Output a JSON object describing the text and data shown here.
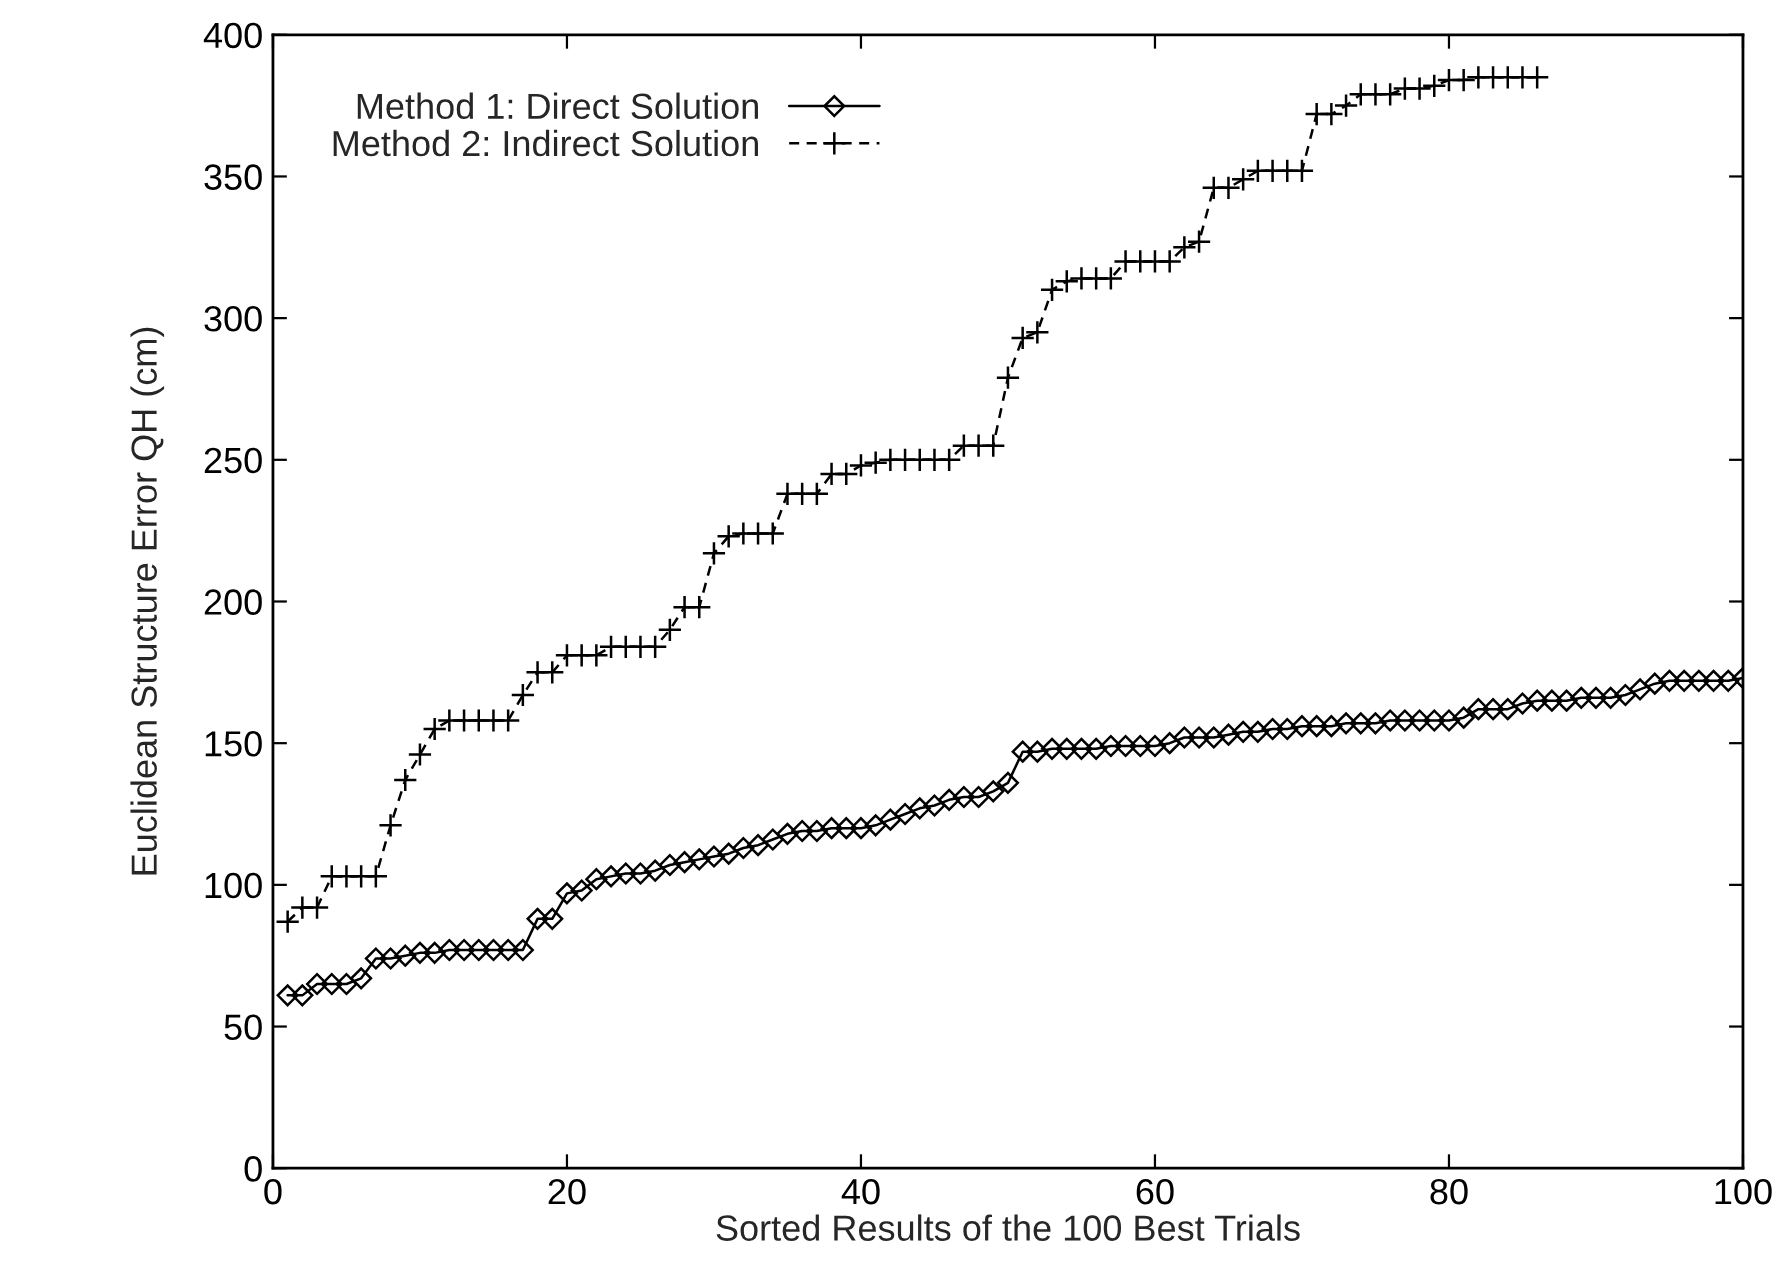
{
  "chart_data": {
    "type": "line",
    "xlabel": "Sorted Results of the 100 Best Trials",
    "ylabel": "Euclidean Structure Error QH (cm)",
    "xlim": [
      0,
      100
    ],
    "ylim": [
      0,
      400
    ],
    "xticks": [
      0,
      20,
      40,
      60,
      80,
      100
    ],
    "yticks": [
      0,
      50,
      100,
      150,
      200,
      250,
      300,
      350,
      400
    ],
    "grid": false,
    "legend": "top left",
    "series": [
      {
        "name": "Method 1: Direct Solution",
        "color": "#000000",
        "marker": "diamond",
        "line_style": "solid",
        "x": [
          1,
          2,
          3,
          4,
          5,
          6,
          7,
          8,
          9,
          10,
          11,
          12,
          13,
          14,
          15,
          16,
          17,
          18,
          19,
          20,
          21,
          22,
          23,
          24,
          25,
          26,
          27,
          28,
          29,
          30,
          31,
          32,
          33,
          34,
          35,
          36,
          37,
          38,
          39,
          40,
          41,
          42,
          43,
          44,
          45,
          46,
          47,
          48,
          49,
          50,
          51,
          52,
          53,
          54,
          55,
          56,
          57,
          58,
          59,
          60,
          61,
          62,
          63,
          64,
          65,
          66,
          67,
          68,
          69,
          70,
          71,
          72,
          73,
          74,
          75,
          76,
          77,
          78,
          79,
          80,
          81,
          82,
          83,
          84,
          85,
          86,
          87,
          88,
          89,
          90,
          91,
          92,
          93,
          94,
          95,
          96,
          97,
          98,
          99,
          100
        ],
        "values": [
          61,
          61,
          65,
          65,
          65,
          67,
          74,
          74,
          75,
          76,
          76,
          77,
          77,
          77,
          77,
          77,
          77,
          88,
          88,
          97,
          98,
          102,
          103,
          104,
          104,
          105,
          107,
          108,
          109,
          110,
          111,
          113,
          114,
          116,
          118,
          119,
          119,
          120,
          120,
          120,
          121,
          123,
          125,
          127,
          128,
          130,
          131,
          131,
          133,
          136,
          147,
          147,
          148,
          148,
          148,
          148,
          149,
          149,
          149,
          149,
          150,
          152,
          152,
          152,
          153,
          154,
          154,
          155,
          155,
          156,
          156,
          156,
          157,
          157,
          157,
          158,
          158,
          158,
          158,
          158,
          159,
          162,
          162,
          162,
          164,
          165,
          165,
          165,
          166,
          166,
          166,
          167,
          169,
          171,
          172,
          172,
          172,
          172,
          172,
          173
        ]
      },
      {
        "name": "Method 2: Indirect Solution",
        "color": "#000000",
        "marker": "cross",
        "line_style": "dashed",
        "x": [
          1,
          2,
          3,
          4,
          5,
          6,
          7,
          8,
          9,
          10,
          11,
          12,
          13,
          14,
          15,
          16,
          17,
          18,
          19,
          20,
          21,
          22,
          23,
          24,
          25,
          26,
          27,
          28,
          29,
          30,
          31,
          32,
          33,
          34,
          35,
          36,
          37,
          38,
          39,
          40,
          41,
          42,
          43,
          44,
          45,
          46,
          47,
          48,
          49,
          50,
          51,
          52,
          53,
          54,
          55,
          56,
          57,
          58,
          59,
          60,
          61,
          62,
          63,
          64,
          65,
          66,
          67,
          68,
          69,
          70,
          71,
          72,
          73,
          74,
          75,
          76,
          77,
          78,
          79,
          80,
          81,
          82,
          83,
          84,
          85,
          86
        ],
        "values": [
          87,
          92,
          92,
          103,
          103,
          103,
          103,
          121,
          137,
          146,
          155,
          158,
          158,
          158,
          158,
          158,
          167,
          175,
          175,
          181,
          181,
          181,
          184,
          184,
          184,
          184,
          190,
          198,
          198,
          217,
          223,
          224,
          224,
          224,
          238,
          238,
          238,
          245,
          245,
          248,
          249,
          250,
          250,
          250,
          250,
          250,
          255,
          255,
          255,
          279,
          293,
          295,
          310,
          313,
          314,
          314,
          314,
          320,
          320,
          320,
          320,
          325,
          327,
          346,
          346,
          349,
          352,
          352,
          352,
          352,
          372,
          372,
          375,
          379,
          379,
          379,
          381,
          381,
          382,
          384,
          384,
          385,
          385,
          385,
          385,
          385
        ]
      }
    ]
  }
}
